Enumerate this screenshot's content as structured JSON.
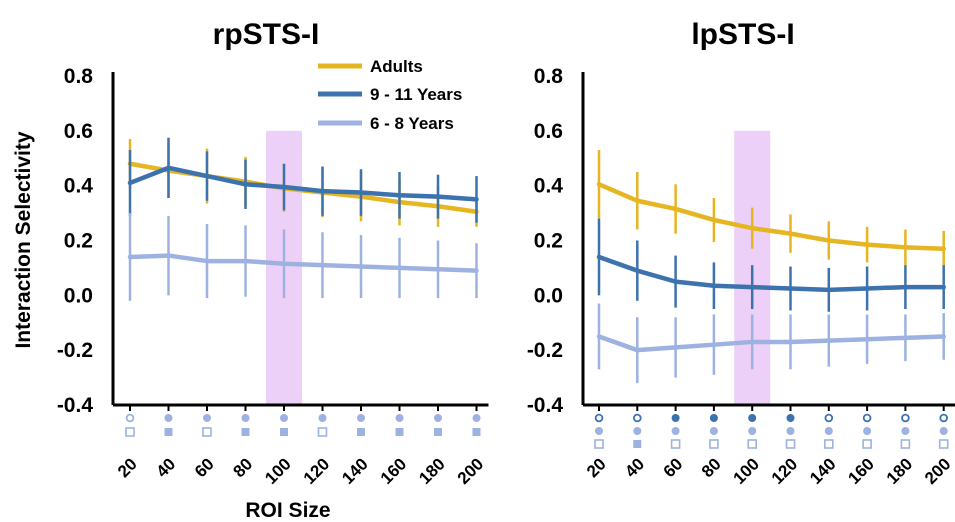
{
  "figure": {
    "ylabel": "Interaction Selectivity",
    "xlabel": "ROI Size",
    "legend": [
      {
        "name": "Adults",
        "color": "#e6b522"
      },
      {
        "name": "9 - 11 Years",
        "color": "#3c72ae"
      },
      {
        "name": "6 - 8 Years",
        "color": "#9db2e0"
      }
    ]
  },
  "chart_data": [
    {
      "type": "line",
      "title": "rpSTS-I",
      "x": [
        20,
        40,
        60,
        80,
        100,
        120,
        140,
        160,
        180,
        200
      ],
      "x_tick_labels": [
        "20",
        "40",
        "60",
        "80",
        "100",
        "120",
        "140",
        "160",
        "180",
        "200"
      ],
      "ylim": [
        -0.4,
        0.8
      ],
      "y_ticks": [
        "0.8",
        "0.6",
        "0.4",
        "0.2",
        "0.0",
        "-0.2",
        "-0.4"
      ],
      "y_tick_values": [
        0.8,
        0.6,
        0.4,
        0.2,
        0.0,
        -0.2,
        -0.4
      ],
      "highlight_x": 100,
      "series": [
        {
          "name": "Adults",
          "color": "#e6b522",
          "values": [
            0.48,
            0.455,
            0.435,
            0.415,
            0.39,
            0.375,
            0.36,
            0.34,
            0.325,
            0.305
          ],
          "errors": [
            0.09,
            0.1,
            0.1,
            0.09,
            0.085,
            0.09,
            0.09,
            0.085,
            0.075,
            0.055
          ]
        },
        {
          "name": "9 - 11 Years",
          "color": "#3c72ae",
          "values": [
            0.41,
            0.465,
            0.435,
            0.405,
            0.395,
            0.38,
            0.375,
            0.365,
            0.36,
            0.35
          ],
          "errors": [
            0.12,
            0.11,
            0.09,
            0.09,
            0.085,
            0.09,
            0.085,
            0.085,
            0.08,
            0.085
          ]
        },
        {
          "name": "6 - 8 Years",
          "color": "#9db2e0",
          "values": [
            0.14,
            0.145,
            0.125,
            0.125,
            0.115,
            0.11,
            0.105,
            0.1,
            0.095,
            0.09
          ],
          "errors": [
            0.16,
            0.145,
            0.135,
            0.13,
            0.125,
            0.12,
            0.115,
            0.11,
            0.105,
            0.1
          ]
        }
      ],
      "significance_markers": [
        [
          "open-circle",
          "filled-circle",
          "filled-circle",
          "filled-circle",
          "filled-circle",
          "filled-circle",
          "filled-circle",
          "filled-circle",
          "filled-circle",
          "filled-circle"
        ],
        [
          "open-square",
          "filled-square",
          "open-square",
          "filled-square",
          "filled-square",
          "open-square",
          "filled-square",
          "filled-square",
          "filled-square",
          "filled-square"
        ]
      ]
    },
    {
      "type": "line",
      "title": "lpSTS-I",
      "x": [
        20,
        40,
        60,
        80,
        100,
        120,
        140,
        160,
        180,
        200
      ],
      "x_tick_labels": [
        "20",
        "40",
        "60",
        "80",
        "100",
        "120",
        "140",
        "160",
        "180",
        "200"
      ],
      "ylim": [
        -0.4,
        0.8
      ],
      "y_ticks": [
        "0.8",
        "0.6",
        "0.4",
        "0.2",
        "0.0",
        "-0.2",
        "-0.4"
      ],
      "y_tick_values": [
        0.8,
        0.6,
        0.4,
        0.2,
        0.0,
        -0.2,
        -0.4
      ],
      "highlight_x": 100,
      "series": [
        {
          "name": "Adults",
          "color": "#e6b522",
          "values": [
            0.405,
            0.345,
            0.315,
            0.275,
            0.245,
            0.225,
            0.2,
            0.185,
            0.175,
            0.17
          ],
          "errors": [
            0.125,
            0.105,
            0.09,
            0.08,
            0.075,
            0.07,
            0.07,
            0.065,
            0.065,
            0.065
          ]
        },
        {
          "name": "9 - 11 Years",
          "color": "#3c72ae",
          "values": [
            0.14,
            0.09,
            0.05,
            0.035,
            0.03,
            0.025,
            0.02,
            0.025,
            0.03,
            0.03
          ],
          "errors": [
            0.14,
            0.11,
            0.095,
            0.085,
            0.08,
            0.08,
            0.08,
            0.08,
            0.08,
            0.08
          ]
        },
        {
          "name": "6 - 8 Years",
          "color": "#9db2e0",
          "values": [
            -0.15,
            -0.2,
            -0.19,
            -0.18,
            -0.17,
            -0.17,
            -0.165,
            -0.16,
            -0.155,
            -0.15
          ],
          "errors": [
            0.12,
            0.12,
            0.11,
            0.11,
            0.1,
            0.1,
            0.095,
            0.09,
            0.085,
            0.085
          ]
        }
      ],
      "significance_markers": [
        [
          "open-circle",
          "open-circle",
          "filled-circle",
          "filled-circle",
          "filled-circle",
          "filled-circle",
          "open-circle",
          "open-circle",
          "open-circle",
          "open-circle"
        ],
        [
          "filled-circle",
          "filled-circle",
          "filled-circle",
          "filled-circle",
          "filled-circle",
          "filled-circle",
          "filled-circle",
          "filled-circle",
          "filled-circle",
          "filled-circle"
        ],
        [
          "open-square",
          "filled-square",
          "open-square",
          "open-square",
          "open-square",
          "open-square",
          "open-square",
          "open-square",
          "open-square",
          "open-square"
        ]
      ]
    }
  ]
}
